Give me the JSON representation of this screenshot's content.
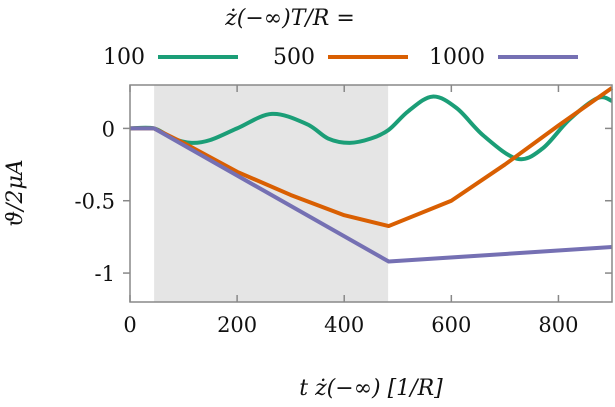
{
  "chart_data": {
    "type": "line",
    "legend_title": "ż(−∞)T/R =",
    "legend_placement": "top",
    "xlabel": "t ż(−∞)  [1/R]",
    "ylabel": "ϑ/2μA",
    "xlim": [
      0,
      900
    ],
    "ylim": [
      -1.2,
      0.3
    ],
    "xticks": [
      0,
      200,
      400,
      600,
      800
    ],
    "xtick_labels": [
      "0",
      "200",
      "400",
      "600",
      "800"
    ],
    "yticks": [
      0,
      -0.5,
      -1
    ],
    "ytick_labels": [
      "0",
      "-0.5",
      "-1"
    ],
    "grid": false,
    "shaded_region": [
      45,
      482
    ],
    "shade_color": "#e5e5e5",
    "series": [
      {
        "name": "100",
        "color": "#1b9e77",
        "points": [
          [
            0,
            0
          ],
          [
            45,
            0
          ],
          [
            80,
            -0.07
          ],
          [
            115,
            -0.1
          ],
          [
            150,
            -0.08
          ],
          [
            200,
            0
          ],
          [
            265,
            0.1
          ],
          [
            330,
            0.03
          ],
          [
            370,
            -0.07
          ],
          [
            410,
            -0.1
          ],
          [
            450,
            -0.07
          ],
          [
            483,
            -0.01
          ],
          [
            520,
            0.12
          ],
          [
            565,
            0.22
          ],
          [
            610,
            0.14
          ],
          [
            660,
            -0.05
          ],
          [
            723,
            -0.21
          ],
          [
            770,
            -0.14
          ],
          [
            820,
            0.06
          ],
          [
            873,
            0.21
          ],
          [
            900,
            0.19
          ]
        ]
      },
      {
        "name": "500",
        "color": "#d95f02",
        "points": [
          [
            0,
            0
          ],
          [
            45,
            0
          ],
          [
            100,
            -0.1
          ],
          [
            200,
            -0.3
          ],
          [
            300,
            -0.46
          ],
          [
            400,
            -0.6
          ],
          [
            483,
            -0.675
          ],
          [
            600,
            -0.5
          ],
          [
            700,
            -0.25
          ],
          [
            800,
            0.02
          ],
          [
            900,
            0.28
          ]
        ]
      },
      {
        "name": "1000",
        "color": "#7570b3",
        "points": [
          [
            0,
            0
          ],
          [
            45,
            0
          ],
          [
            483,
            -0.92
          ],
          [
            900,
            -0.82
          ]
        ]
      }
    ]
  }
}
